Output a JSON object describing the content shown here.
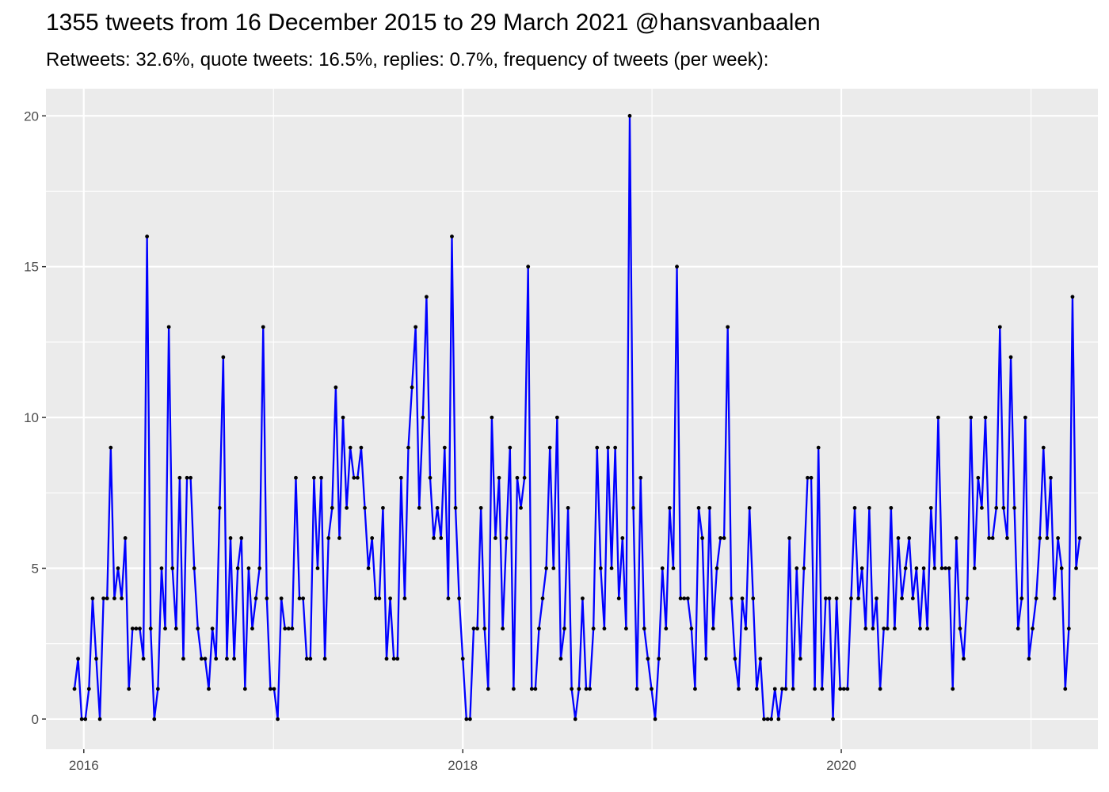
{
  "title": "1355 tweets from 16 December 2015 to 29 March 2021 @hansvanbaalen",
  "subtitle": "Retweets: 32.6%, quote tweets: 16.5%, replies: 0.7%, frequency of tweets (per week):",
  "colors": {
    "panel_bg": "#EBEBEB",
    "grid": "#FFFFFF",
    "line": "#0000FF",
    "point": "#000000",
    "tick_text": "#4D4D4D"
  },
  "chart_data": {
    "type": "line",
    "title": "1355 tweets from 16 December 2015 to 29 March 2021 @hansvanbaalen",
    "subtitle": "Retweets: 32.6%, quote tweets: 16.5%, replies: 0.7%, frequency of tweets (per week):",
    "xlabel": "",
    "ylabel": "",
    "x_start": "2015-12-14",
    "x_step_days": 7,
    "xlim": [
      "2015-10-20",
      "2021-05-10"
    ],
    "ylim": [
      -1,
      20.9
    ],
    "x_ticks": [
      {
        "label": "2016",
        "date": "2016-01-01"
      },
      {
        "label": "2018",
        "date": "2018-01-01"
      },
      {
        "label": "2020",
        "date": "2020-01-01"
      }
    ],
    "x_minor_ticks": [
      "2017-01-01",
      "2019-01-01",
      "2021-01-01"
    ],
    "y_ticks": [
      0,
      5,
      10,
      15,
      20
    ],
    "grid": true,
    "legend": "none",
    "series": [
      {
        "values": [
          1,
          2,
          0,
          0,
          1,
          4,
          2,
          0,
          4,
          4,
          9,
          4,
          5,
          4,
          6,
          1,
          3,
          3,
          3,
          2,
          16,
          3,
          0,
          1,
          5,
          3,
          13,
          5,
          3,
          8,
          2,
          8,
          8,
          5,
          3,
          2,
          2,
          1,
          3,
          2,
          7,
          12,
          2,
          6,
          2,
          5,
          6,
          1,
          5,
          3,
          4,
          5,
          13,
          4,
          1,
          1,
          0,
          4,
          3,
          3,
          3,
          8,
          4,
          4,
          2,
          2,
          8,
          5,
          8,
          2,
          6,
          7,
          11,
          6,
          10,
          7,
          9,
          8,
          8,
          9,
          7,
          5,
          6,
          4,
          4,
          7,
          2,
          4,
          2,
          2,
          8,
          4,
          9,
          11,
          13,
          7,
          10,
          14,
          8,
          6,
          7,
          6,
          9,
          4,
          16,
          7,
          4,
          2,
          0,
          0,
          3,
          3,
          7,
          3,
          1,
          10,
          6,
          8,
          3,
          6,
          9,
          1,
          8,
          7,
          8,
          15,
          1,
          1,
          3,
          4,
          5,
          9,
          5,
          10,
          2,
          3,
          7,
          1,
          0,
          1,
          4,
          1,
          1,
          3,
          9,
          5,
          3,
          9,
          5,
          9,
          4,
          6,
          3,
          20,
          7,
          1,
          8,
          3,
          2,
          1,
          0,
          2,
          5,
          3,
          7,
          5,
          15,
          4,
          4,
          4,
          3,
          1,
          7,
          6,
          2,
          7,
          3,
          5,
          6,
          6,
          13,
          4,
          2,
          1,
          4,
          3,
          7,
          4,
          1,
          2,
          0,
          0,
          0,
          1,
          0,
          1,
          1,
          6,
          1,
          5,
          2,
          5,
          8,
          8,
          1,
          9,
          1,
          4,
          4,
          0,
          4,
          1,
          1,
          1,
          4,
          7,
          4,
          5,
          3,
          7,
          3,
          4,
          1,
          3,
          3,
          7,
          3,
          6,
          4,
          5,
          6,
          4,
          5,
          3,
          5,
          3,
          7,
          5,
          10,
          5,
          5,
          5,
          1,
          6,
          3,
          2,
          4,
          10,
          5,
          8,
          7,
          10,
          6,
          6,
          7,
          13,
          7,
          6,
          12,
          7,
          3,
          4,
          10,
          2,
          3,
          4,
          6,
          9,
          6,
          8,
          4,
          6,
          5,
          1,
          3,
          14,
          5,
          6
        ]
      }
    ]
  }
}
